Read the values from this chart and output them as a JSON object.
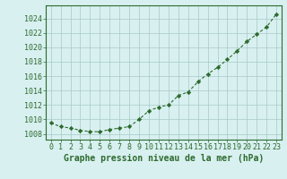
{
  "x": [
    0,
    1,
    2,
    3,
    4,
    5,
    6,
    7,
    8,
    9,
    10,
    11,
    12,
    13,
    14,
    15,
    16,
    17,
    18,
    19,
    20,
    21,
    22,
    23
  ],
  "y": [
    1009.5,
    1009.0,
    1008.8,
    1008.5,
    1008.3,
    1008.3,
    1008.6,
    1008.8,
    1009.0,
    1010.0,
    1011.2,
    1011.7,
    1012.0,
    1013.3,
    1013.8,
    1015.2,
    1016.3,
    1017.2,
    1018.3,
    1019.5,
    1020.8,
    1021.8,
    1022.8,
    1024.6
  ],
  "line_color": "#2d6a2d",
  "marker": "D",
  "marker_size": 2.2,
  "line_width": 0.8,
  "bg_color": "#d8f0f0",
  "grid_color": "#a8c8c8",
  "xlabel": "Graphe pression niveau de la mer (hPa)",
  "xlabel_fontsize": 7,
  "xlabel_color": "#2d6a2d",
  "ylabel_ticks": [
    1008,
    1010,
    1012,
    1014,
    1016,
    1018,
    1020,
    1022,
    1024
  ],
  "xticks": [
    0,
    1,
    2,
    3,
    4,
    5,
    6,
    7,
    8,
    9,
    10,
    11,
    12,
    13,
    14,
    15,
    16,
    17,
    18,
    19,
    20,
    21,
    22,
    23
  ],
  "xtick_labels": [
    "0",
    "1",
    "2",
    "3",
    "4",
    "5",
    "6",
    "7",
    "8",
    "9",
    "10",
    "11",
    "12",
    "13",
    "14",
    "15",
    "16",
    "17",
    "18",
    "19",
    "20",
    "21",
    "22",
    "23"
  ],
  "ylim": [
    1007.2,
    1025.8
  ],
  "xlim": [
    -0.5,
    23.5
  ],
  "tick_fontsize": 6,
  "tick_color": "#2d6a2d",
  "spine_color": "#2d6a2d"
}
